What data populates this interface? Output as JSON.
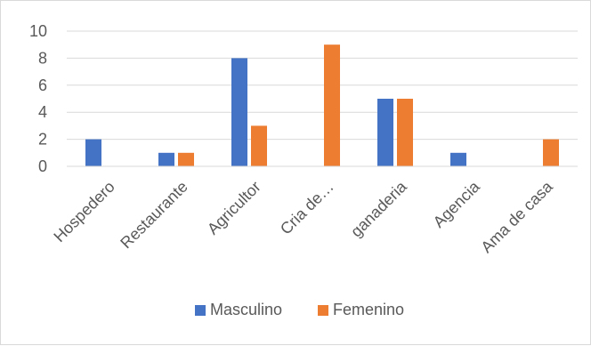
{
  "chart_data": {
    "type": "bar",
    "categories": [
      "Hospedero",
      "Restaurante",
      "Agricultor",
      "Cria de…",
      "ganaderia",
      "Agencia",
      "Ama de casa"
    ],
    "series": [
      {
        "name": "Masculino",
        "color": "#4472C4",
        "values": [
          2,
          1,
          8,
          0,
          5,
          1,
          0
        ]
      },
      {
        "name": "Femenino",
        "color": "#ED7D31",
        "values": [
          0,
          1,
          3,
          9,
          5,
          0,
          2
        ]
      }
    ],
    "ylim": [
      0,
      10
    ],
    "yticks": [
      0,
      2,
      4,
      6,
      8,
      10
    ],
    "grid": true,
    "legend": "bottom"
  }
}
